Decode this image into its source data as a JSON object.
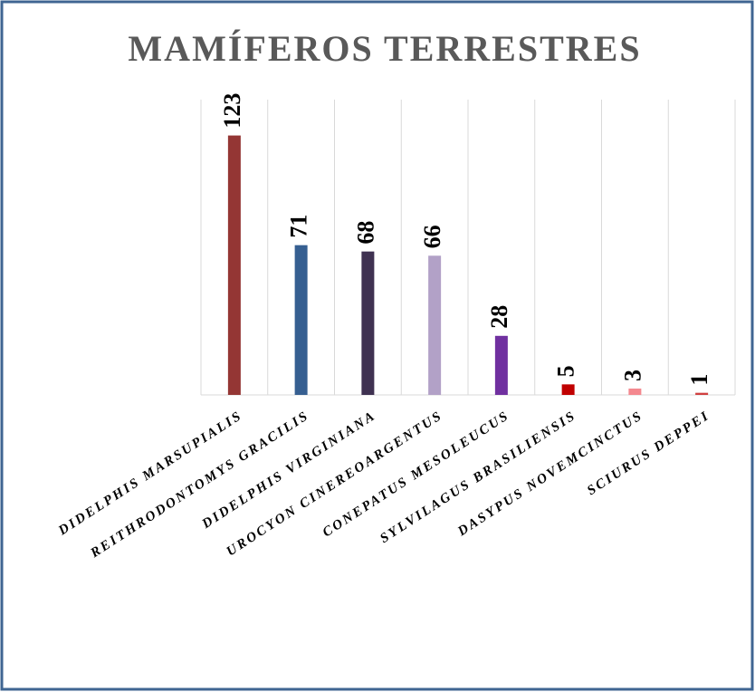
{
  "chart_data": {
    "type": "bar",
    "title": "MAMÍFEROS TERRESTRES",
    "categories": [
      "DIDELPHIS MARSUPIALIS",
      "REITHRODONTOMYS GRACILIS",
      "DIDELPHIS VIRGINIANA",
      "UROCYON CINEREOARGENTUS",
      "CONEPATUS MESOLEUCUS",
      "SYLVILAGUS BRASILIENSIS",
      "DASYPUS NOVEMCINCTUS",
      "SCIURUS DEPPEI"
    ],
    "values": [
      123,
      71,
      68,
      66,
      28,
      5,
      3,
      1
    ],
    "colors": [
      "#943634",
      "#365f91",
      "#3f3151",
      "#b2a1c7",
      "#7030a0",
      "#c00000",
      "#f4888f",
      "#d04040"
    ],
    "ylim": [
      0,
      140
    ],
    "grid": true
  }
}
